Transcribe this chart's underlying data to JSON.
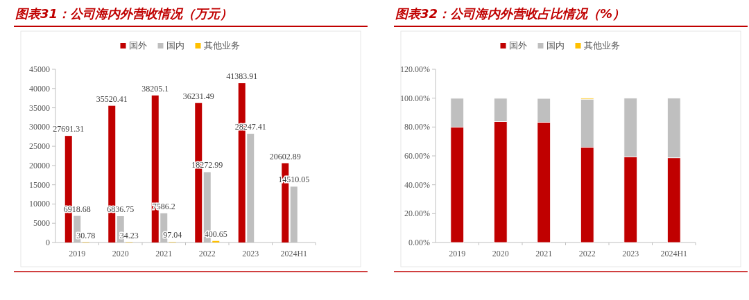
{
  "chart_data": [
    {
      "type": "bar",
      "title": "图表31：公司海内外营收情况（万元）",
      "categories": [
        "2019",
        "2020",
        "2021",
        "2022",
        "2023",
        "2024H1"
      ],
      "series": [
        {
          "name": "国外",
          "color": "#c00000",
          "values": [
            27691.31,
            35520.41,
            38205.1,
            36231.49,
            41383.91,
            20602.89
          ]
        },
        {
          "name": "国内",
          "color": "#bfbfbf",
          "values": [
            6918.68,
            6836.75,
            7586.2,
            18272.99,
            28247.41,
            14510.05
          ]
        },
        {
          "name": "其他业务",
          "color": "#ffc000",
          "values": [
            30.78,
            34.23,
            97.04,
            400.65,
            null,
            null
          ]
        }
      ],
      "ylim": [
        0,
        45000
      ],
      "yticks": [
        0,
        5000,
        10000,
        15000,
        20000,
        25000,
        30000,
        35000,
        40000,
        45000
      ],
      "data_labels": true,
      "legend": "top",
      "grid": false
    },
    {
      "type": "bar",
      "title": "图表32：公司海内外营收占比情况（%）",
      "categories": [
        "2019",
        "2020",
        "2021",
        "2022",
        "2023",
        "2024H1"
      ],
      "stacked": true,
      "series": [
        {
          "name": "国外",
          "color": "#c00000",
          "values": [
            79.9,
            83.8,
            83.3,
            66.0,
            59.4,
            58.7
          ]
        },
        {
          "name": "国内",
          "color": "#bfbfbf",
          "values": [
            20.0,
            16.1,
            16.5,
            33.3,
            40.6,
            41.3
          ]
        },
        {
          "name": "其他业务",
          "color": "#ffc000",
          "values": [
            null,
            null,
            null,
            0.7,
            null,
            null
          ]
        }
      ],
      "ylim": [
        0,
        120
      ],
      "yticks": [
        {
          "value": 0,
          "label": "0.00%"
        },
        {
          "value": 20,
          "label": "20.00%"
        },
        {
          "value": 40,
          "label": "40.00%"
        },
        {
          "value": 60,
          "label": "60.00%"
        },
        {
          "value": 80,
          "label": "80.00%"
        },
        {
          "value": 100,
          "label": "100.00%"
        },
        {
          "value": 120,
          "label": "120.00%"
        }
      ],
      "legend": "top",
      "grid": false
    }
  ]
}
